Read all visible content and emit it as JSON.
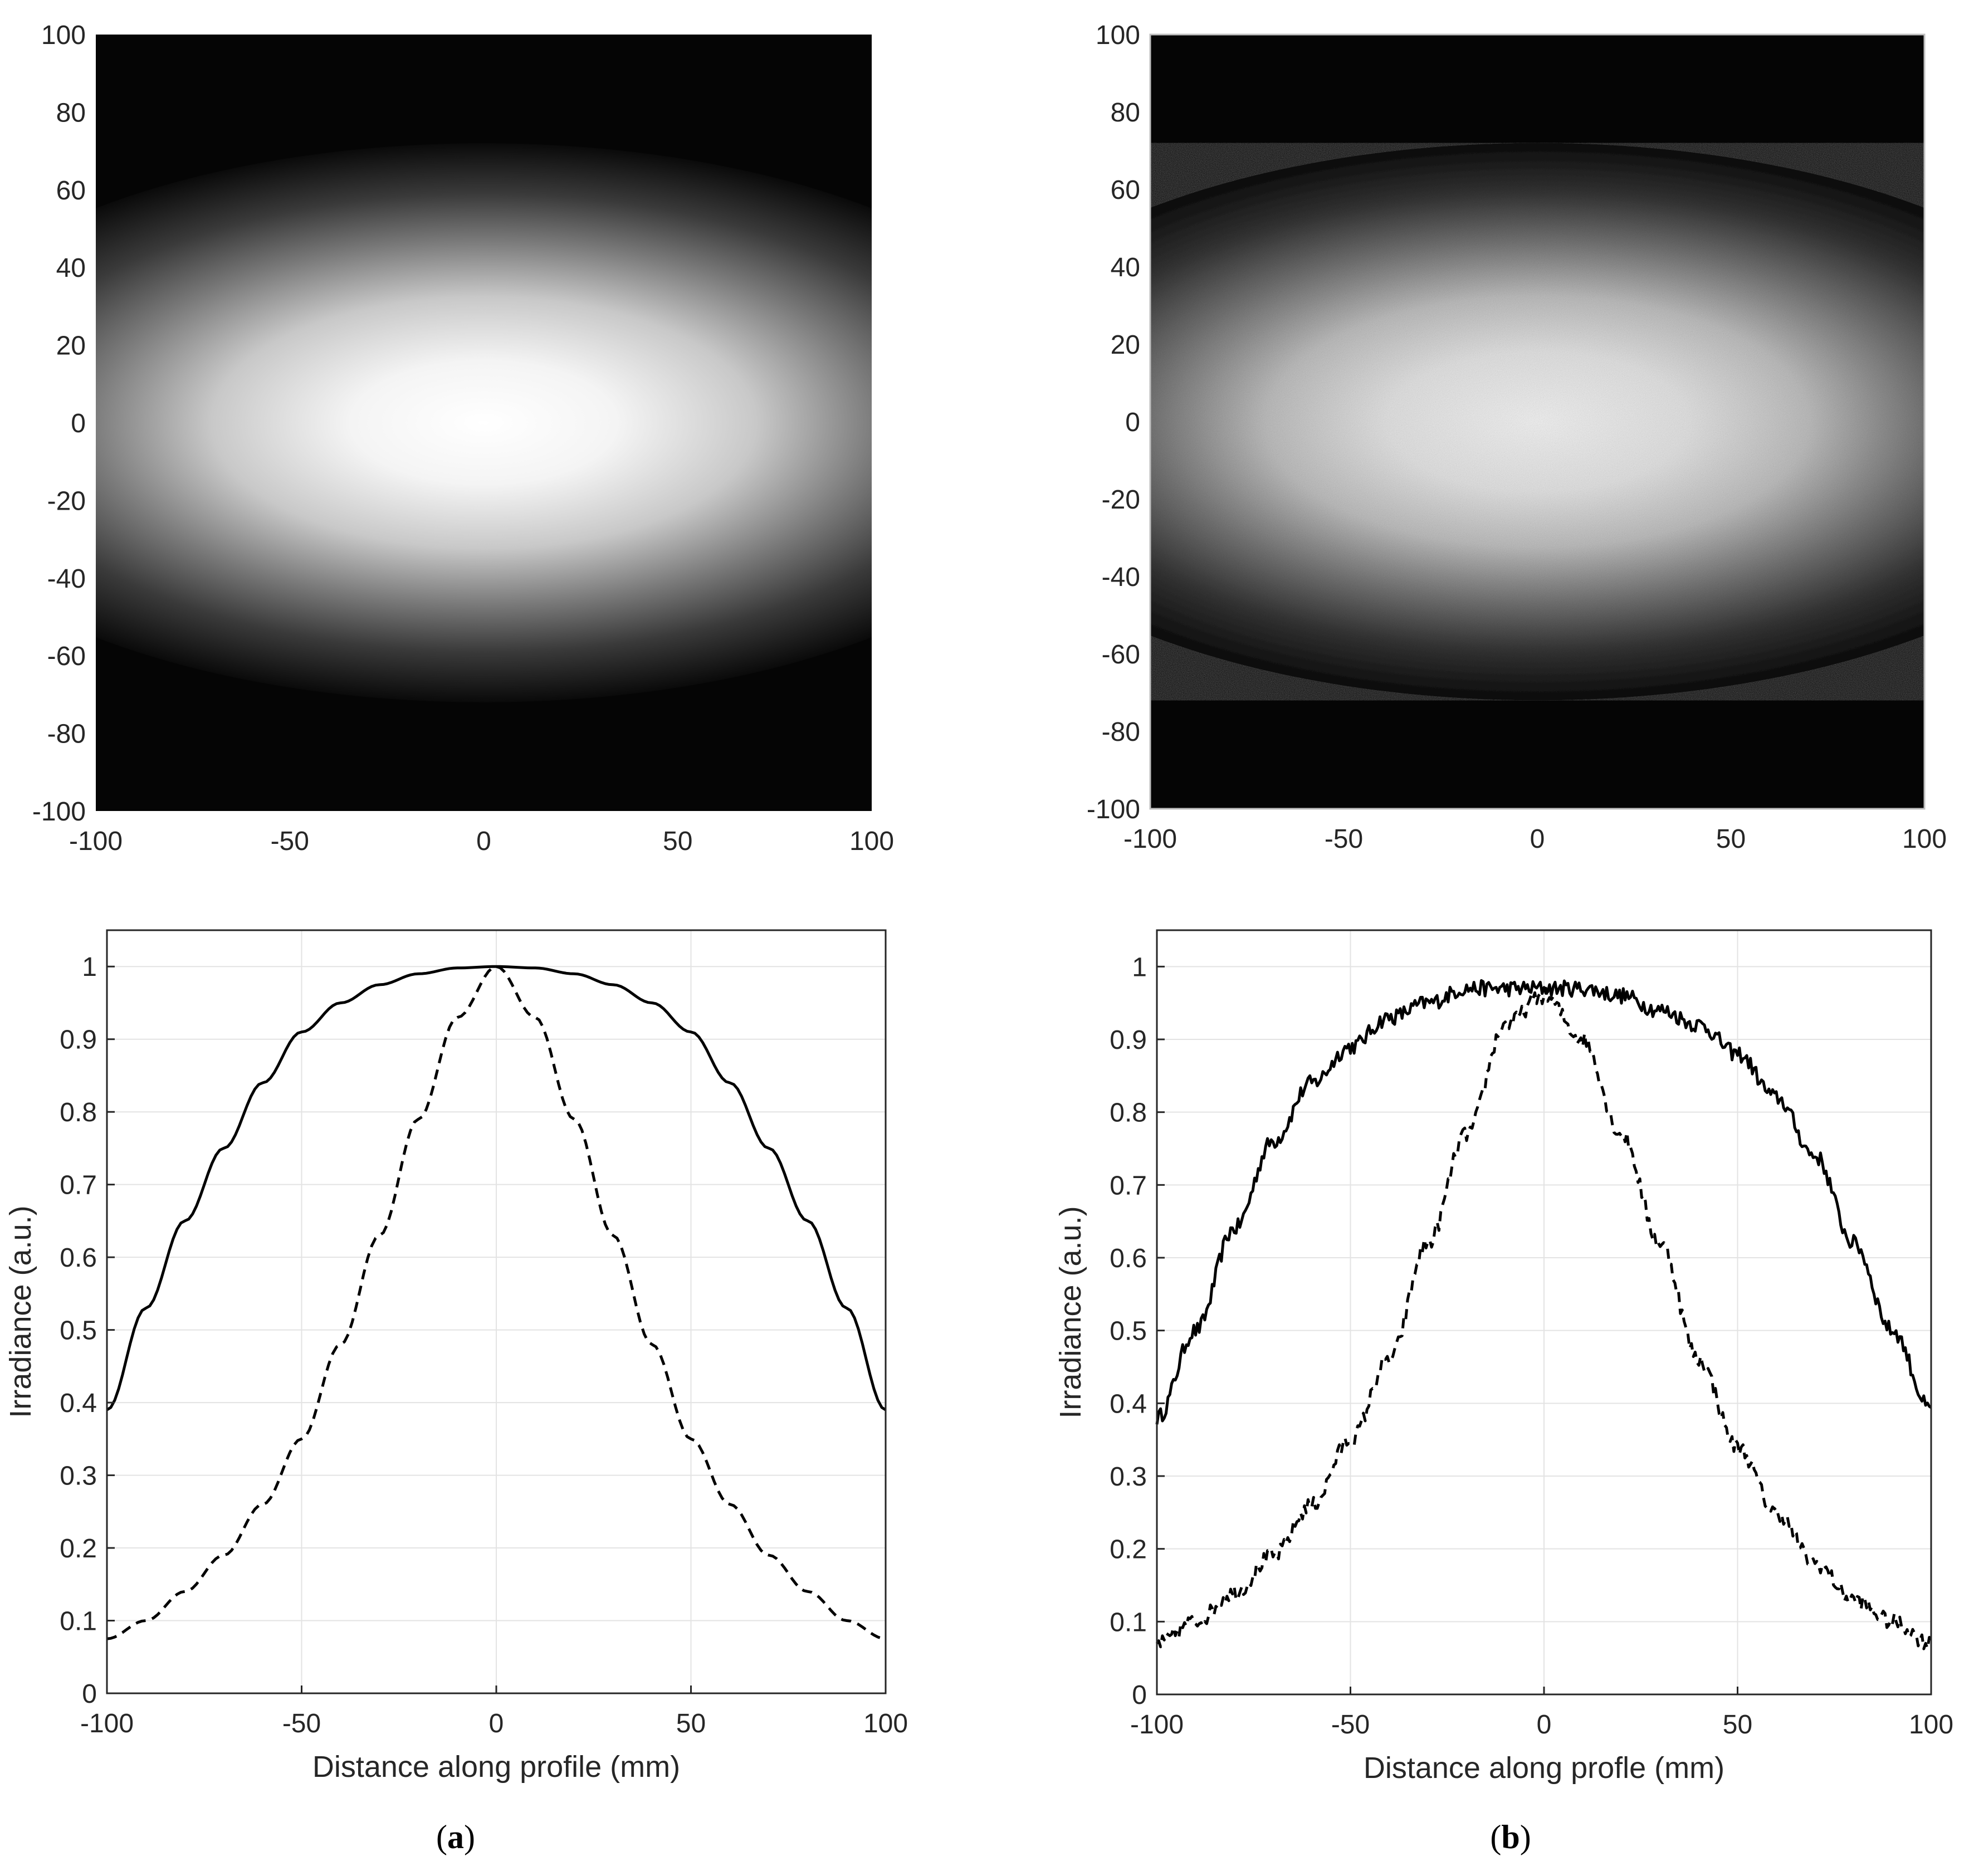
{
  "figure": {
    "panel_labels": [
      {
        "open": "(",
        "letter": "a",
        "close": ")"
      },
      {
        "open": "(",
        "letter": "b",
        "close": ")"
      }
    ]
  },
  "chart_data": [
    {
      "type": "heatmap",
      "panel": "a",
      "noise": false,
      "xlim": [
        -100,
        100
      ],
      "ylim": [
        -100,
        100
      ],
      "xticks": [
        "-100",
        "-50",
        "0",
        "50",
        "100"
      ],
      "yticks": [
        "-100",
        "-80",
        "-60",
        "-40",
        "-20",
        "0",
        "20",
        "40",
        "60",
        "80",
        "100"
      ],
      "colormap": "gray",
      "peak": {
        "x": 0,
        "y": 0,
        "value": 1
      },
      "x_profile_value_at_edge": 0.39,
      "y_profile_value_at_edge": 0.075
    },
    {
      "type": "heatmap",
      "panel": "b",
      "noise": true,
      "xlim": [
        -100,
        100
      ],
      "ylim": [
        -100,
        100
      ],
      "xticks": [
        "-100",
        "-50",
        "0",
        "50",
        "100"
      ],
      "yticks": [
        "-100",
        "-80",
        "-60",
        "-40",
        "-20",
        "0",
        "20",
        "40",
        "60",
        "80",
        "100"
      ],
      "colormap": "gray",
      "peak": {
        "x": 0,
        "y": 0,
        "value": 1
      },
      "x_profile_value_at_edge": 0.38,
      "y_profile_value_at_edge": 0.07
    },
    {
      "type": "line",
      "panel": "a",
      "xlabel": "Distance along profile (mm)",
      "ylabel": "Irradiance (a.u.)",
      "xlim": [
        -100,
        100
      ],
      "ylim": [
        0,
        1.05
      ],
      "grid": true,
      "xticks": [
        "-100",
        "-50",
        "0",
        "50",
        "100"
      ],
      "yticks": [
        "0",
        "0.1",
        "0.2",
        "0.3",
        "0.4",
        "0.5",
        "0.6",
        "0.7",
        "0.8",
        "0.9",
        "1"
      ],
      "x": [
        -100,
        -90,
        -80,
        -70,
        -60,
        -50,
        -40,
        -30,
        -20,
        -10,
        0,
        10,
        20,
        30,
        40,
        50,
        60,
        70,
        80,
        90,
        100
      ],
      "series": [
        {
          "style": "solid",
          "values": [
            0.39,
            0.53,
            0.65,
            0.75,
            0.84,
            0.91,
            0.95,
            0.975,
            0.99,
            0.998,
            1.0,
            0.998,
            0.99,
            0.975,
            0.95,
            0.91,
            0.84,
            0.75,
            0.65,
            0.53,
            0.39
          ]
        },
        {
          "style": "dashed",
          "values": [
            0.075,
            0.1,
            0.14,
            0.19,
            0.26,
            0.35,
            0.48,
            0.63,
            0.79,
            0.93,
            1.0,
            0.93,
            0.79,
            0.63,
            0.48,
            0.35,
            0.26,
            0.19,
            0.14,
            0.1,
            0.075
          ]
        }
      ]
    },
    {
      "type": "line",
      "panel": "b",
      "xlabel": "Distance along profle (mm)",
      "ylabel": "Irradiance (a.u.)",
      "xlim": [
        -100,
        100
      ],
      "ylim": [
        0,
        1.05
      ],
      "grid": true,
      "xticks": [
        "-100",
        "-50",
        "0",
        "50",
        "100"
      ],
      "yticks": [
        "0",
        "0.1",
        "0.2",
        "0.3",
        "0.4",
        "0.5",
        "0.6",
        "0.7",
        "0.8",
        "0.9",
        "1"
      ],
      "x": [
        -100,
        -90,
        -80,
        -70,
        -60,
        -50,
        -40,
        -30,
        -20,
        -10,
        0,
        10,
        20,
        30,
        40,
        50,
        60,
        70,
        80,
        90,
        100
      ],
      "series": [
        {
          "style": "solid",
          "noisy": true,
          "values": [
            0.38,
            0.5,
            0.64,
            0.76,
            0.84,
            0.89,
            0.93,
            0.95,
            0.97,
            0.97,
            0.97,
            0.97,
            0.96,
            0.94,
            0.92,
            0.88,
            0.82,
            0.74,
            0.62,
            0.5,
            0.39
          ]
        },
        {
          "style": "dashed",
          "noisy": true,
          "values": [
            0.07,
            0.1,
            0.14,
            0.19,
            0.26,
            0.35,
            0.46,
            0.62,
            0.77,
            0.92,
            0.96,
            0.9,
            0.77,
            0.62,
            0.46,
            0.34,
            0.25,
            0.18,
            0.13,
            0.1,
            0.07
          ]
        }
      ]
    }
  ]
}
